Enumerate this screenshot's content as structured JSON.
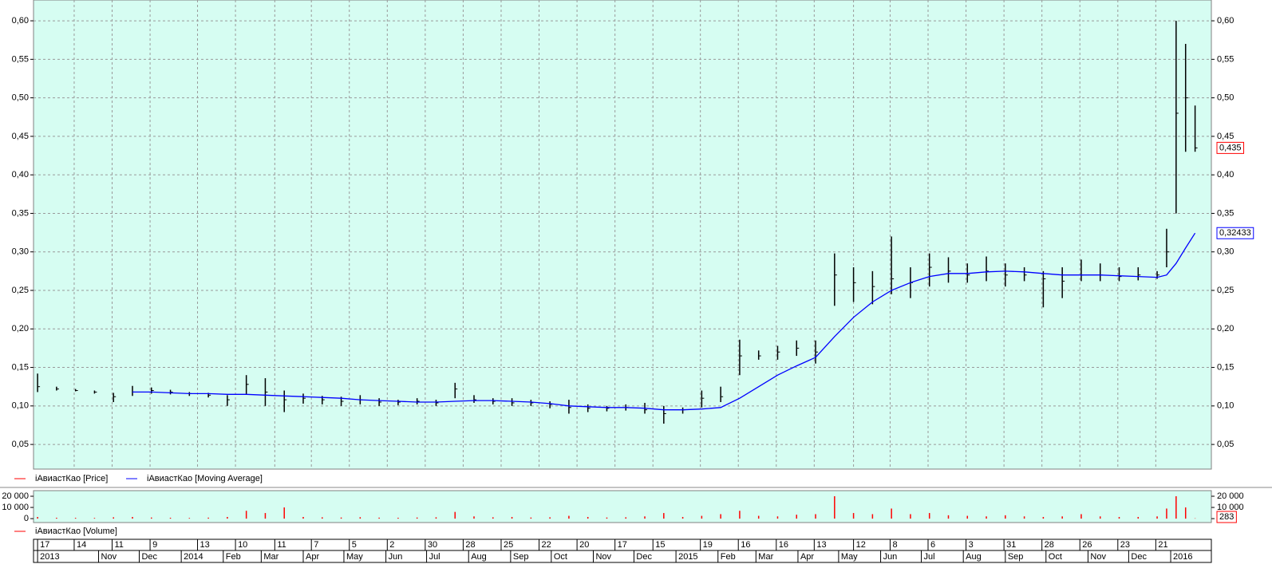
{
  "chart_data": [
    {
      "type": "price",
      "x": [
        "2013-09-17",
        "2013-10-01",
        "2013-10-15",
        "2013-10-29",
        "2013-11-12",
        "2013-11-26",
        "2013-12-10",
        "2013-12-24",
        "2014-01-07",
        "2014-01-21",
        "2014-02-04",
        "2014-02-18",
        "2014-03-04",
        "2014-03-18",
        "2014-04-01",
        "2014-04-15",
        "2014-04-29",
        "2014-05-13",
        "2014-05-27",
        "2014-06-10",
        "2014-06-24",
        "2014-07-08",
        "2014-07-22",
        "2014-08-05",
        "2014-08-19",
        "2014-09-02",
        "2014-09-16",
        "2014-09-30",
        "2014-10-14",
        "2014-10-28",
        "2014-11-11",
        "2014-11-25",
        "2014-12-09",
        "2014-12-23",
        "2015-01-06",
        "2015-01-20",
        "2015-02-03",
        "2015-02-17",
        "2015-03-03",
        "2015-03-17",
        "2015-03-31",
        "2015-04-14",
        "2015-04-28",
        "2015-05-12",
        "2015-05-26",
        "2015-06-09",
        "2015-06-23",
        "2015-07-07",
        "2015-07-21",
        "2015-08-04",
        "2015-08-18",
        "2015-09-01",
        "2015-09-15",
        "2015-09-29",
        "2015-10-13",
        "2015-10-27",
        "2015-11-10",
        "2015-11-24",
        "2015-12-08",
        "2015-12-22",
        "2015-12-29",
        "2016-01-05",
        "2016-01-12",
        "2016-01-19"
      ],
      "series": [
        {
          "name": "iАвиастКао [Price]",
          "color": "#ff0000",
          "mark_color": "#000000",
          "values": [
            0.125,
            0.122,
            0.12,
            0.118,
            0.112,
            0.118,
            0.12,
            0.118,
            0.116,
            0.114,
            0.108,
            0.128,
            0.118,
            0.108,
            0.11,
            0.108,
            0.106,
            0.108,
            0.105,
            0.105,
            0.106,
            0.104,
            0.122,
            0.108,
            0.106,
            0.104,
            0.104,
            0.102,
            0.098,
            0.097,
            0.097,
            0.098,
            0.095,
            0.09,
            0.095,
            0.11,
            0.112,
            0.165,
            0.165,
            0.17,
            0.175,
            0.17,
            0.27,
            0.26,
            0.255,
            0.265,
            0.26,
            0.28,
            0.275,
            0.27,
            0.275,
            0.27,
            0.27,
            0.265,
            0.262,
            0.27,
            0.27,
            0.268,
            0.27,
            0.27,
            0.3,
            0.48,
            0.5,
            0.435
          ],
          "high": [
            0.142,
            0.125,
            0.122,
            0.12,
            0.117,
            0.126,
            0.124,
            0.121,
            0.118,
            0.117,
            0.114,
            0.14,
            0.136,
            0.12,
            0.116,
            0.113,
            0.112,
            0.114,
            0.11,
            0.108,
            0.11,
            0.108,
            0.13,
            0.114,
            0.11,
            0.11,
            0.108,
            0.106,
            0.108,
            0.102,
            0.1,
            0.102,
            0.104,
            0.1,
            0.098,
            0.12,
            0.125,
            0.186,
            0.172,
            0.178,
            0.185,
            0.185,
            0.298,
            0.28,
            0.275,
            0.32,
            0.28,
            0.298,
            0.293,
            0.285,
            0.294,
            0.285,
            0.28,
            0.275,
            0.28,
            0.29,
            0.285,
            0.28,
            0.28,
            0.275,
            0.33,
            0.6,
            0.57,
            0.49
          ],
          "low": [
            0.118,
            0.12,
            0.119,
            0.116,
            0.105,
            0.113,
            0.116,
            0.115,
            0.113,
            0.111,
            0.1,
            0.115,
            0.1,
            0.092,
            0.103,
            0.102,
            0.1,
            0.102,
            0.1,
            0.101,
            0.102,
            0.1,
            0.11,
            0.104,
            0.102,
            0.1,
            0.1,
            0.097,
            0.09,
            0.092,
            0.093,
            0.094,
            0.09,
            0.077,
            0.09,
            0.098,
            0.105,
            0.14,
            0.16,
            0.16,
            0.165,
            0.155,
            0.23,
            0.235,
            0.232,
            0.245,
            0.24,
            0.255,
            0.26,
            0.26,
            0.262,
            0.255,
            0.262,
            0.228,
            0.24,
            0.262,
            0.262,
            0.262,
            0.263,
            0.265,
            0.28,
            0.35,
            0.43,
            0.43
          ],
          "last_label": "0,435"
        },
        {
          "name": "iАвиастКао [Moving Average]",
          "color": "#0000ff",
          "values": [
            null,
            null,
            null,
            null,
            null,
            0.118,
            0.118,
            0.117,
            0.116,
            0.116,
            0.115,
            0.115,
            0.114,
            0.113,
            0.112,
            0.111,
            0.11,
            0.108,
            0.107,
            0.106,
            0.105,
            0.105,
            0.106,
            0.107,
            0.107,
            0.106,
            0.105,
            0.103,
            0.1,
            0.099,
            0.098,
            0.098,
            0.097,
            0.095,
            0.095,
            0.096,
            0.098,
            0.11,
            0.125,
            0.14,
            0.152,
            0.163,
            0.19,
            0.215,
            0.235,
            0.25,
            0.26,
            0.268,
            0.272,
            0.272,
            0.274,
            0.275,
            0.274,
            0.272,
            0.27,
            0.27,
            0.27,
            0.269,
            0.268,
            0.267,
            0.27,
            0.285,
            0.305,
            0.32433
          ],
          "last_label": "0,32433"
        }
      ],
      "xlim": [
        "2013-09-14",
        "2016-01-31"
      ],
      "ylim": [
        0.018,
        0.627
      ],
      "yticks": [
        {
          "value": 0.05,
          "label": "0,05"
        },
        {
          "value": 0.1,
          "label": "0,10"
        },
        {
          "value": 0.15,
          "label": "0,15"
        },
        {
          "value": 0.2,
          "label": "0,20"
        },
        {
          "value": 0.25,
          "label": "0,25"
        },
        {
          "value": 0.3,
          "label": "0,30"
        },
        {
          "value": 0.35,
          "label": "0,35"
        },
        {
          "value": 0.4,
          "label": "0,40"
        },
        {
          "value": 0.45,
          "label": "0,45"
        },
        {
          "value": 0.5,
          "label": "0,50"
        },
        {
          "value": 0.55,
          "label": "0,55"
        },
        {
          "value": 0.6,
          "label": "0,60"
        }
      ],
      "xticks": [
        {
          "value": "2013-09-17",
          "label": "17"
        },
        {
          "value": "2013-10-14",
          "label": "14"
        },
        {
          "value": "2013-11-11",
          "label": "11"
        },
        {
          "value": "2013-12-09",
          "label": "9"
        },
        {
          "value": "2014-01-13",
          "label": "13"
        },
        {
          "value": "2014-02-10",
          "label": "10"
        },
        {
          "value": "2014-03-11",
          "label": "11"
        },
        {
          "value": "2014-04-07",
          "label": "7"
        },
        {
          "value": "2014-05-05",
          "label": "5"
        },
        {
          "value": "2014-06-02",
          "label": "2"
        },
        {
          "value": "2014-06-30",
          "label": "30"
        },
        {
          "value": "2014-07-28",
          "label": "28"
        },
        {
          "value": "2014-08-25",
          "label": "25"
        },
        {
          "value": "2014-09-22",
          "label": "22"
        },
        {
          "value": "2014-10-20",
          "label": "20"
        },
        {
          "value": "2014-11-17",
          "label": "17"
        },
        {
          "value": "2014-12-15",
          "label": "15"
        },
        {
          "value": "2015-01-19",
          "label": "19"
        },
        {
          "value": "2015-02-16",
          "label": "16"
        },
        {
          "value": "2015-03-16",
          "label": "16"
        },
        {
          "value": "2015-04-13",
          "label": "13"
        },
        {
          "value": "2015-05-12",
          "label": "12"
        },
        {
          "value": "2015-06-08",
          "label": "8"
        },
        {
          "value": "2015-07-06",
          "label": "6"
        },
        {
          "value": "2015-08-03",
          "label": "3"
        },
        {
          "value": "2015-08-31",
          "label": "31"
        },
        {
          "value": "2015-09-28",
          "label": "28"
        },
        {
          "value": "2015-10-26",
          "label": "26"
        },
        {
          "value": "2015-11-23",
          "label": "23"
        },
        {
          "value": "2015-12-21",
          "label": "21"
        }
      ],
      "month_ticks": [
        {
          "value": "2013-09-17",
          "label": "2013"
        },
        {
          "value": "2013-11-01",
          "label": "Nov"
        },
        {
          "value": "2013-12-01",
          "label": "Dec"
        },
        {
          "value": "2014-01-01",
          "label": "2014"
        },
        {
          "value": "2014-02-01",
          "label": "Feb"
        },
        {
          "value": "2014-03-01",
          "label": "Mar"
        },
        {
          "value": "2014-04-01",
          "label": "Apr"
        },
        {
          "value": "2014-05-01",
          "label": "May"
        },
        {
          "value": "2014-06-01",
          "label": "Jun"
        },
        {
          "value": "2014-07-01",
          "label": "Jul"
        },
        {
          "value": "2014-08-01",
          "label": "Aug"
        },
        {
          "value": "2014-09-01",
          "label": "Sep"
        },
        {
          "value": "2014-10-01",
          "label": "Oct"
        },
        {
          "value": "2014-11-01",
          "label": "Nov"
        },
        {
          "value": "2014-12-01",
          "label": "Dec"
        },
        {
          "value": "2015-01-01",
          "label": "2015"
        },
        {
          "value": "2015-02-01",
          "label": "Feb"
        },
        {
          "value": "2015-03-01",
          "label": "Mar"
        },
        {
          "value": "2015-04-01",
          "label": "Apr"
        },
        {
          "value": "2015-05-01",
          "label": "May"
        },
        {
          "value": "2015-06-01",
          "label": "Jun"
        },
        {
          "value": "2015-07-01",
          "label": "Jul"
        },
        {
          "value": "2015-08-01",
          "label": "Aug"
        },
        {
          "value": "2015-09-01",
          "label": "Sep"
        },
        {
          "value": "2015-10-01",
          "label": "Oct"
        },
        {
          "value": "2015-11-01",
          "label": "Nov"
        },
        {
          "value": "2015-12-01",
          "label": "Dec"
        },
        {
          "value": "2016-01-01",
          "label": "2016"
        }
      ],
      "grid": true,
      "background": "#d6fdf2"
    },
    {
      "type": "volume",
      "series": [
        {
          "name": "iАвиастКао [Volume]",
          "color": "#ff0000",
          "values": [
            1500,
            800,
            700,
            600,
            1200,
            1500,
            1000,
            800,
            600,
            900,
            1500,
            7000,
            5000,
            10000,
            1500,
            1200,
            1000,
            1300,
            900,
            800,
            1000,
            1200,
            6000,
            2000,
            1200,
            1500,
            1000,
            1200,
            2500,
            1500,
            1000,
            1200,
            2000,
            5000,
            1500,
            2500,
            4000,
            7000,
            2500,
            2000,
            3500,
            4000,
            20000,
            5000,
            4000,
            9000,
            4000,
            5000,
            3000,
            2500,
            2000,
            3000,
            2000,
            1500,
            2000,
            4000,
            2000,
            1500,
            1500,
            2000,
            9000,
            20000,
            10000,
            283
          ],
          "last_label": "283"
        }
      ],
      "ylim": [
        -3500,
        25000
      ],
      "yticks": [
        0,
        {
          "value": 10000,
          "label": "10 000"
        },
        {
          "value": 20000,
          "label": "20 000"
        }
      ],
      "background": "#d6fdf2"
    }
  ]
}
